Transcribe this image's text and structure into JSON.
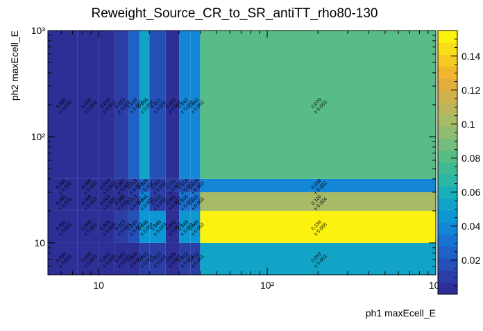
{
  "chart_data": {
    "type": "heatmap",
    "title": "Reweight_Source_CR_to_SR_antiTT_rho80-130",
    "xlabel": "ph1 maxEcell_E",
    "ylabel": "ph2 maxEcell_E",
    "x_scale": "log",
    "y_scale": "log",
    "xlim": [
      5,
      1000
    ],
    "ylim": [
      5,
      1000
    ],
    "x_ticks": [
      {
        "value": 10,
        "label": "10"
      },
      {
        "value": 100,
        "label": "10²"
      },
      {
        "value": 1000,
        "label": "10³"
      }
    ],
    "y_ticks": [
      {
        "value": 10,
        "label": "10"
      },
      {
        "value": 100,
        "label": "10²"
      },
      {
        "value": 1000,
        "label": "10³"
      }
    ],
    "x_bin_edges": [
      5,
      7.5,
      10,
      12.5,
      15,
      17.5,
      20,
      25,
      30,
      35,
      40,
      1000
    ],
    "y_bin_edges": [
      5,
      10,
      20,
      30,
      40,
      1000
    ],
    "cells": [
      {
        "xbin": 0,
        "ybin": 0,
        "value": 0.0,
        "error": 0.0
      },
      {
        "xbin": 1,
        "ybin": 0,
        "value": 0.0,
        "error": 0.0
      },
      {
        "xbin": 2,
        "ybin": 0,
        "value": 0.001,
        "error": 0.0
      },
      {
        "xbin": 3,
        "ybin": 0,
        "value": 0.002,
        "error": 0.0
      },
      {
        "xbin": 4,
        "ybin": 0,
        "value": 0.006,
        "error": 0.001
      },
      {
        "xbin": 5,
        "ybin": 0,
        "value": 0.01,
        "error": 0.001
      },
      {
        "xbin": 6,
        "ybin": 0,
        "value": 0.01,
        "error": 0.001
      },
      {
        "xbin": 7,
        "ybin": 0,
        "value": 0.006,
        "error": 0.001
      },
      {
        "xbin": 8,
        "ybin": 0,
        "value": 0.012,
        "error": 0.001
      },
      {
        "xbin": 9,
        "ybin": 0,
        "value": 0.012,
        "error": 0.001
      },
      {
        "xbin": 10,
        "ybin": 0,
        "value": 0.052,
        "error": 0.003
      },
      {
        "xbin": 0,
        "ybin": 1,
        "value": 0.001,
        "error": 0.001
      },
      {
        "xbin": 1,
        "ybin": 1,
        "value": 0.0,
        "error": 0.001
      },
      {
        "xbin": 2,
        "ybin": 1,
        "value": 0.005,
        "error": 0.005
      },
      {
        "xbin": 3,
        "ybin": 1,
        "value": 0.013,
        "error": 0.004
      },
      {
        "xbin": 4,
        "ybin": 1,
        "value": 0.02,
        "error": 0.002
      },
      {
        "xbin": 5,
        "ybin": 1,
        "value": 0.046,
        "error": 0.002
      },
      {
        "xbin": 6,
        "ybin": 1,
        "value": 0.046,
        "error": 0.023
      },
      {
        "xbin": 7,
        "ybin": 1,
        "value": 0.002,
        "error": 0.002
      },
      {
        "xbin": 8,
        "ybin": 1,
        "value": 0.048,
        "error": 0.002
      },
      {
        "xbin": 9,
        "ybin": 1,
        "value": 0.048,
        "error": 0.002
      },
      {
        "xbin": 10,
        "ybin": 1,
        "value": 0.156,
        "error": 0.005
      },
      {
        "xbin": 0,
        "ybin": 2,
        "value": 0.001,
        "error": 0.001
      },
      {
        "xbin": 1,
        "ybin": 2,
        "value": 0.0,
        "error": 0.003
      },
      {
        "xbin": 2,
        "ybin": 2,
        "value": 0.003,
        "error": 0.003
      },
      {
        "xbin": 3,
        "ybin": 2,
        "value": 0.005,
        "error": 0.013
      },
      {
        "xbin": 4,
        "ybin": 2,
        "value": 0.013,
        "error": 0.002
      },
      {
        "xbin": 5,
        "ybin": 2,
        "value": 0.04,
        "error": 0.003
      },
      {
        "xbin": 6,
        "ybin": 2,
        "value": 0.013,
        "error": 0.002
      },
      {
        "xbin": 7,
        "ybin": 2,
        "value": 0.001,
        "error": 0.002
      },
      {
        "xbin": 8,
        "ybin": 2,
        "value": 0.035,
        "error": 0.002
      },
      {
        "xbin": 9,
        "ybin": 2,
        "value": 0.035,
        "error": 0.002
      },
      {
        "xbin": 10,
        "ybin": 2,
        "value": 0.1,
        "error": 0.004
      },
      {
        "xbin": 0,
        "ybin": 3,
        "value": 0.001,
        "error": 0.0
      },
      {
        "xbin": 1,
        "ybin": 3,
        "value": 0.0,
        "error": 0.0
      },
      {
        "xbin": 2,
        "ybin": 3,
        "value": 0.003,
        "error": 0.003
      },
      {
        "xbin": 3,
        "ybin": 3,
        "value": 0.007,
        "error": 0.0
      },
      {
        "xbin": 4,
        "ybin": 3,
        "value": 0.013,
        "error": 0.001
      },
      {
        "xbin": 5,
        "ybin": 3,
        "value": 0.028,
        "error": 0.002
      },
      {
        "xbin": 6,
        "ybin": 3,
        "value": 0.011,
        "error": 0.002
      },
      {
        "xbin": 7,
        "ybin": 3,
        "value": 0.011,
        "error": 0.002
      },
      {
        "xbin": 8,
        "ybin": 3,
        "value": 0.018,
        "error": 0.002
      },
      {
        "xbin": 9,
        "ybin": 3,
        "value": 0.018,
        "error": 0.002
      },
      {
        "xbin": 10,
        "ybin": 3,
        "value": 0.038,
        "error": 0.002
      },
      {
        "xbin": 0,
        "ybin": 4,
        "value": 0.0,
        "error": 0.0
      },
      {
        "xbin": 1,
        "ybin": 4,
        "value": 0.0,
        "error": 0.002
      },
      {
        "xbin": 2,
        "ybin": 4,
        "value": 0.005,
        "error": 0.002
      },
      {
        "xbin": 3,
        "ybin": 4,
        "value": 0.013,
        "error": 0.002
      },
      {
        "xbin": 4,
        "ybin": 4,
        "value": 0.022,
        "error": 0.002
      },
      {
        "xbin": 5,
        "ybin": 4,
        "value": 0.056,
        "error": 0.003
      },
      {
        "xbin": 6,
        "ybin": 4,
        "value": 0.021,
        "error": 0.002
      },
      {
        "xbin": 7,
        "ybin": 4,
        "value": 0.002,
        "error": 0.002
      },
      {
        "xbin": 8,
        "ybin": 4,
        "value": 0.042,
        "error": 0.002
      },
      {
        "xbin": 9,
        "ybin": 4,
        "value": 0.042,
        "error": 0.002
      },
      {
        "xbin": 10,
        "ybin": 4,
        "value": 0.079,
        "error": 0.003
      }
    ],
    "colorbar": {
      "range": [
        0,
        0.155
      ],
      "ticks": [
        0.02,
        0.04,
        0.06,
        0.08,
        0.1,
        0.12,
        0.14
      ],
      "tick_labels": [
        "0.02",
        "0.04",
        "0.06",
        "0.08",
        "0.1",
        "0.12",
        "0.14"
      ]
    },
    "palette": [
      "#2d2e96",
      "#2a3ea6",
      "#2450b8",
      "#1f61c7",
      "#1874d2",
      "#1386d6",
      "#0d97d2",
      "#11a4c6",
      "#1aafb8",
      "#29b6a5",
      "#3fb991",
      "#58bc86",
      "#74bd7e",
      "#8fbc72",
      "#a7ba66",
      "#bcb65a",
      "#d0b24c",
      "#e3ae3e",
      "#f1b530",
      "#f7ca22",
      "#f9de17",
      "#fbf210"
    ],
    "grid": false,
    "legend": "none"
  }
}
